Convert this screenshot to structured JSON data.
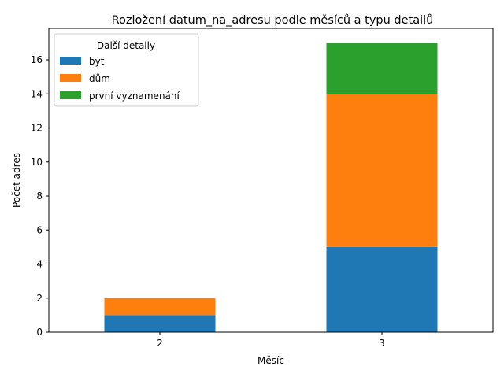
{
  "chart_data": {
    "type": "bar",
    "stacked": true,
    "title": "Rozložení datum_na_adresu podle měsíců a typu detailů",
    "xlabel": "Měsíc",
    "ylabel": "Počet adres",
    "categories": [
      "2",
      "3"
    ],
    "ylim": [
      0,
      17.85
    ],
    "yticks": [
      0,
      2,
      4,
      6,
      8,
      10,
      12,
      14,
      16
    ],
    "grid": false,
    "legend": {
      "title": "Další detaily",
      "placement": "upper-left"
    },
    "series": [
      {
        "name": "byt",
        "values": [
          1,
          5
        ],
        "color": "#1f77b4"
      },
      {
        "name": "dům",
        "values": [
          1,
          9
        ],
        "color": "#ff7f0e"
      },
      {
        "name": "první vyznamenání",
        "values": [
          0,
          3
        ],
        "color": "#2ca02c"
      }
    ]
  }
}
